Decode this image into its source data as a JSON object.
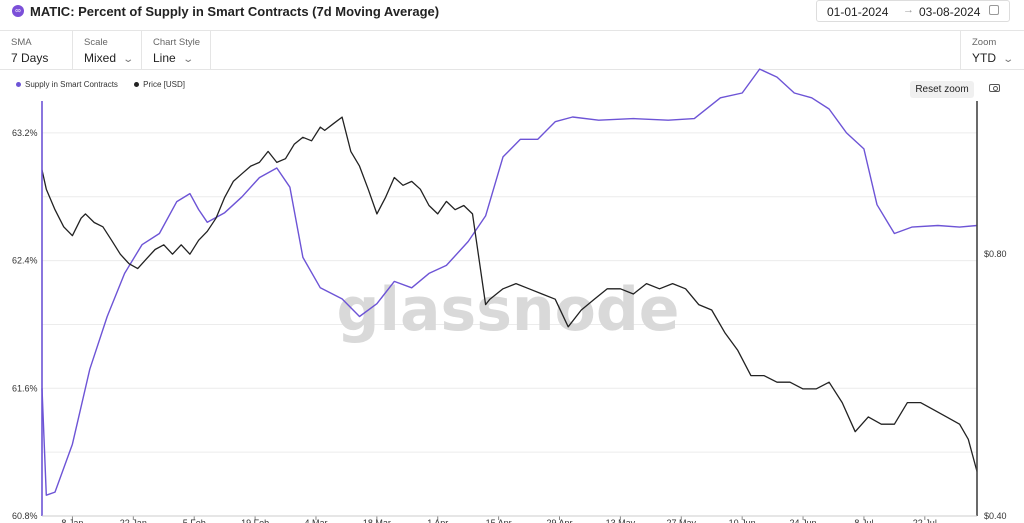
{
  "header": {
    "logo_glyph": "∞",
    "title": "MATIC: Percent of Supply in Smart Contracts (7d Moving Average)",
    "date_from": "01-01-2024",
    "date_arrow": "→",
    "date_to": "03-08-2024"
  },
  "controls": {
    "sma": {
      "label": "SMA",
      "value": "7 Days"
    },
    "scale": {
      "label": "Scale",
      "value": "Mixed"
    },
    "chart_style": {
      "label": "Chart Style",
      "value": "Line"
    },
    "zoom": {
      "label": "Zoom",
      "value": "YTD"
    }
  },
  "toolbar": {
    "reset_zoom": "Reset zoom"
  },
  "watermark": "glassnode",
  "colors": {
    "supply": "#6d54d6",
    "price": "#222222",
    "axis_right": "#444444"
  },
  "chart_data": {
    "type": "line",
    "x_ticks": [
      "8 Jan",
      "22 Jan",
      "5 Feb",
      "19 Feb",
      "4 Mar",
      "18 Mar",
      "1 Apr",
      "15 Apr",
      "29 Apr",
      "13 May",
      "27 May",
      "10 Jun",
      "24 Jun",
      "8 Jul",
      "22 Jul"
    ],
    "x_range": [
      "2024-01-01",
      "2024-08-03"
    ],
    "y_left": {
      "ticks": [
        "60.8%",
        "61.6%",
        "62.4%",
        "63.2%"
      ],
      "range": [
        60.8,
        63.4
      ]
    },
    "y_right": {
      "ticks": [
        "$0.40",
        "$0.80"
      ],
      "range": [
        0.4,
        1.2
      ],
      "scale": "log"
    },
    "legend": [
      "Supply in Smart Contracts",
      "Price [USD]"
    ],
    "series": [
      {
        "name": "Supply in Smart Contracts",
        "axis": "left",
        "x": [
          "2024-01-01",
          "2024-01-02",
          "2024-01-04",
          "2024-01-08",
          "2024-01-12",
          "2024-01-16",
          "2024-01-20",
          "2024-01-24",
          "2024-01-28",
          "2024-02-01",
          "2024-02-04",
          "2024-02-06",
          "2024-02-08",
          "2024-02-12",
          "2024-02-16",
          "2024-02-20",
          "2024-02-24",
          "2024-02-27",
          "2024-03-01",
          "2024-03-05",
          "2024-03-10",
          "2024-03-14",
          "2024-03-18",
          "2024-03-22",
          "2024-03-26",
          "2024-03-30",
          "2024-04-03",
          "2024-04-08",
          "2024-04-12",
          "2024-04-16",
          "2024-04-20",
          "2024-04-24",
          "2024-04-28",
          "2024-05-02",
          "2024-05-08",
          "2024-05-16",
          "2024-05-24",
          "2024-05-30",
          "2024-06-05",
          "2024-06-10",
          "2024-06-14",
          "2024-06-18",
          "2024-06-22",
          "2024-06-26",
          "2024-06-30",
          "2024-07-04",
          "2024-07-08",
          "2024-07-11",
          "2024-07-15",
          "2024-07-19",
          "2024-07-25",
          "2024-07-30",
          "2024-08-03"
        ],
        "values": [
          61.6,
          60.93,
          60.95,
          61.25,
          61.72,
          62.05,
          62.32,
          62.5,
          62.57,
          62.77,
          62.82,
          62.72,
          62.64,
          62.7,
          62.8,
          62.92,
          62.98,
          62.86,
          62.42,
          62.23,
          62.16,
          62.05,
          62.13,
          62.27,
          62.23,
          62.32,
          62.37,
          62.52,
          62.68,
          63.05,
          63.16,
          63.16,
          63.27,
          63.3,
          63.28,
          63.29,
          63.28,
          63.29,
          63.42,
          63.45,
          63.6,
          63.55,
          63.45,
          63.42,
          63.35,
          63.2,
          63.1,
          62.75,
          62.57,
          62.61,
          62.62,
          62.61,
          62.62
        ]
      },
      {
        "name": "Price [USD]",
        "axis": "right",
        "x": [
          "2024-01-01",
          "2024-01-02",
          "2024-01-04",
          "2024-01-06",
          "2024-01-08",
          "2024-01-10",
          "2024-01-11",
          "2024-01-13",
          "2024-01-15",
          "2024-01-17",
          "2024-01-19",
          "2024-01-21",
          "2024-01-23",
          "2024-01-25",
          "2024-01-27",
          "2024-01-29",
          "2024-01-31",
          "2024-02-02",
          "2024-02-04",
          "2024-02-06",
          "2024-02-08",
          "2024-02-10",
          "2024-02-12",
          "2024-02-14",
          "2024-02-16",
          "2024-02-18",
          "2024-02-20",
          "2024-02-22",
          "2024-02-24",
          "2024-02-26",
          "2024-02-28",
          "2024-03-01",
          "2024-03-03",
          "2024-03-05",
          "2024-03-06",
          "2024-03-08",
          "2024-03-10",
          "2024-03-12",
          "2024-03-14",
          "2024-03-16",
          "2024-03-18",
          "2024-03-20",
          "2024-03-22",
          "2024-03-24",
          "2024-03-26",
          "2024-03-28",
          "2024-03-30",
          "2024-04-01",
          "2024-04-03",
          "2024-04-05",
          "2024-04-07",
          "2024-04-09",
          "2024-04-12",
          "2024-04-13",
          "2024-04-16",
          "2024-04-19",
          "2024-04-22",
          "2024-04-25",
          "2024-04-28",
          "2024-05-01",
          "2024-05-04",
          "2024-05-07",
          "2024-05-10",
          "2024-05-13",
          "2024-05-16",
          "2024-05-19",
          "2024-05-22",
          "2024-05-25",
          "2024-05-28",
          "2024-05-31",
          "2024-06-03",
          "2024-06-06",
          "2024-06-09",
          "2024-06-12",
          "2024-06-15",
          "2024-06-18",
          "2024-06-21",
          "2024-06-24",
          "2024-06-27",
          "2024-06-30",
          "2024-07-03",
          "2024-07-06",
          "2024-07-09",
          "2024-07-12",
          "2024-07-15",
          "2024-07-18",
          "2024-07-21",
          "2024-07-24",
          "2024-07-27",
          "2024-07-30",
          "2024-08-01",
          "2024-08-03"
        ],
        "values": [
          1.0,
          0.95,
          0.9,
          0.86,
          0.84,
          0.88,
          0.89,
          0.87,
          0.86,
          0.83,
          0.8,
          0.78,
          0.77,
          0.79,
          0.81,
          0.82,
          0.8,
          0.82,
          0.8,
          0.83,
          0.85,
          0.88,
          0.93,
          0.97,
          0.99,
          1.01,
          1.02,
          1.05,
          1.02,
          1.03,
          1.07,
          1.09,
          1.08,
          1.12,
          1.11,
          1.13,
          1.15,
          1.05,
          1.01,
          0.95,
          0.89,
          0.93,
          0.98,
          0.96,
          0.97,
          0.95,
          0.91,
          0.89,
          0.92,
          0.9,
          0.91,
          0.89,
          0.7,
          0.71,
          0.73,
          0.74,
          0.73,
          0.72,
          0.71,
          0.66,
          0.69,
          0.71,
          0.73,
          0.73,
          0.72,
          0.74,
          0.73,
          0.74,
          0.73,
          0.7,
          0.69,
          0.65,
          0.62,
          0.58,
          0.58,
          0.57,
          0.57,
          0.56,
          0.56,
          0.57,
          0.54,
          0.5,
          0.52,
          0.51,
          0.51,
          0.54,
          0.54,
          0.53,
          0.52,
          0.51,
          0.49,
          0.45
        ]
      }
    ]
  }
}
